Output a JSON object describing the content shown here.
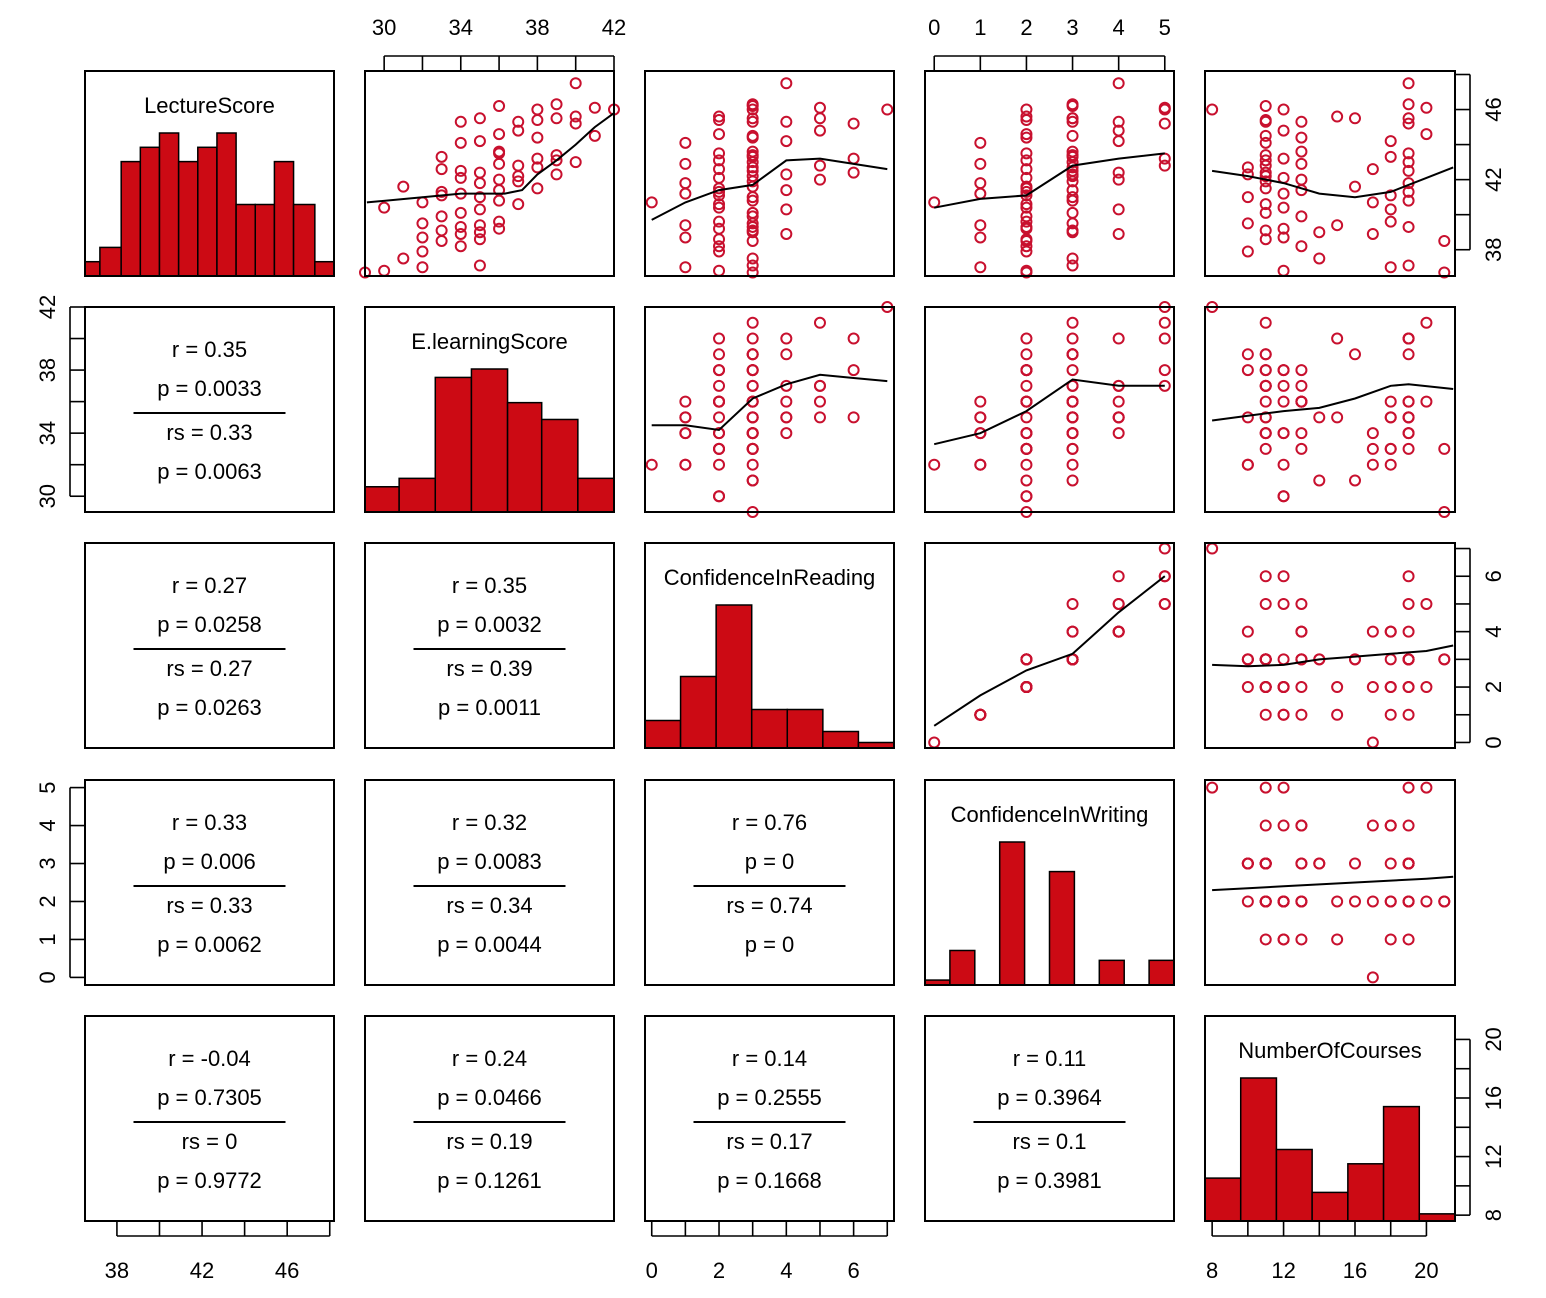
{
  "chart_data": {
    "type": "scatter-matrix",
    "variables": [
      {
        "name": "LectureScore",
        "range": [
          36.5,
          48.2
        ]
      },
      {
        "name": "E.learningScore",
        "range": [
          29.0,
          42.0
        ]
      },
      {
        "name": "ConfidenceInReading",
        "range": [
          -0.2,
          7.2
        ]
      },
      {
        "name": "ConfidenceInWriting",
        "range": [
          -0.2,
          5.2
        ]
      },
      {
        "name": "NumberOfCourses",
        "range": [
          7.6,
          21.6
        ]
      }
    ],
    "axes": {
      "top": [
        {
          "col": 1,
          "ticks": [
            30,
            32,
            34,
            36,
            38,
            40,
            42
          ],
          "labels": [
            "30",
            "34",
            "38",
            "42"
          ]
        },
        {
          "col": 3,
          "ticks": [
            0,
            1,
            2,
            3,
            4,
            5
          ],
          "labels": [
            "0",
            "1",
            "2",
            "3",
            "4",
            "5"
          ]
        }
      ],
      "bottom": [
        {
          "col": 0,
          "ticks": [
            38,
            40,
            42,
            44,
            46,
            48
          ],
          "labels": [
            "38",
            "42",
            "46"
          ]
        },
        {
          "col": 2,
          "ticks": [
            0,
            1,
            2,
            3,
            4,
            5,
            6,
            7
          ],
          "labels": [
            "0",
            "2",
            "4",
            "6"
          ]
        },
        {
          "col": 4,
          "ticks": [
            8,
            10,
            12,
            14,
            16,
            18,
            20
          ],
          "labels": [
            "8",
            "12",
            "16",
            "20"
          ]
        }
      ],
      "left": [
        {
          "row": 1,
          "ticks": [
            30,
            32,
            34,
            36,
            38,
            40,
            42
          ],
          "labels": [
            "30",
            "34",
            "38",
            "42"
          ]
        },
        {
          "row": 3,
          "ticks": [
            0,
            1,
            2,
            3,
            4,
            5
          ],
          "labels": [
            "0",
            "1",
            "2",
            "3",
            "4",
            "5"
          ]
        }
      ],
      "right": [
        {
          "row": 0,
          "ticks": [
            38,
            40,
            42,
            44,
            46,
            48
          ],
          "labels": [
            "38",
            "42",
            "46"
          ]
        },
        {
          "row": 2,
          "ticks": [
            0,
            1,
            2,
            3,
            4,
            5,
            6,
            7
          ],
          "labels": [
            "0",
            "2",
            "4",
            "6"
          ]
        },
        {
          "row": 4,
          "ticks": [
            8,
            10,
            12,
            14,
            16,
            18,
            20
          ],
          "labels": [
            "8",
            "12",
            "16",
            "20"
          ]
        }
      ]
    },
    "histograms": [
      {
        "var": 0,
        "breaks": [
          36.5,
          37.2,
          38.2,
          39.1,
          40,
          40.9,
          41.8,
          42.7,
          43.6,
          44.5,
          45.4,
          46.3,
          47.3,
          48.2
        ],
        "heights": [
          1,
          2,
          8,
          9,
          10,
          8,
          9,
          10,
          5,
          5,
          8,
          5,
          1
        ]
      },
      {
        "var": 1,
        "breaks": [
          29,
          30.7,
          32.5,
          34.3,
          36.1,
          37.8,
          39.6,
          41.4
        ],
        "heights": [
          3,
          4,
          16,
          17,
          13,
          11,
          4
        ]
      },
      {
        "var": 2,
        "breaks": [
          0,
          1,
          2,
          3,
          4,
          5,
          6,
          7
        ],
        "heights": [
          5,
          13,
          26,
          7,
          7,
          3,
          1
        ]
      },
      {
        "var": 3,
        "breaks": [
          0,
          0.5,
          1,
          1.5,
          2,
          2.5,
          3,
          3.5,
          4,
          4.5,
          5
        ],
        "heights": [
          1,
          7,
          0,
          29,
          0,
          23,
          0,
          5,
          0,
          5
        ],
        "drawZero": false
      },
      {
        "var": 4,
        "breaks": [
          8,
          10,
          12,
          14,
          16,
          18,
          20,
          22
        ],
        "heights": [
          6,
          20,
          10,
          4,
          8,
          16,
          1
        ]
      }
    ],
    "data": {
      "LectureScore": [
        47.5,
        46.0,
        46.3,
        46.2,
        46.1,
        46.0,
        45.6,
        45.5,
        45.5,
        45.4,
        45.3,
        45.3,
        45.2,
        44.8,
        44.6,
        44.5,
        44.4,
        44.2,
        43.5,
        43.4,
        43.3,
        43.2,
        43.1,
        43.0,
        42.9,
        42.8,
        42.7,
        42.6,
        42.5,
        42.4,
        42.3,
        42.1,
        42.0,
        41.9,
        41.8,
        41.6,
        41.5,
        41.4,
        41.2,
        41.1,
        41.0,
        40.8,
        40.7,
        40.6,
        40.4,
        40.1,
        39.9,
        39.6,
        39.5,
        39.4,
        39.3,
        39.2,
        39.1,
        39.0,
        38.9,
        38.7,
        38.6,
        38.5,
        38.2,
        37.9,
        37.5,
        37.1,
        37.0,
        36.8,
        36.7,
        44.1,
        43.6,
        40.3,
        41.3,
        42.2
      ],
      "E.learningScore": [
        40,
        42,
        39,
        36,
        41,
        38,
        40,
        39,
        35,
        38,
        37,
        34,
        40,
        37,
        36,
        41,
        38,
        35,
        36,
        39,
        33,
        38,
        39,
        40,
        36,
        37,
        38,
        33,
        34,
        35,
        39,
        34,
        36,
        37,
        35,
        31,
        38,
        36,
        34,
        33,
        35,
        36,
        32,
        37,
        30,
        34,
        33,
        36,
        32,
        35,
        34,
        36,
        33,
        35,
        34,
        32,
        35,
        33,
        34,
        32,
        31,
        35,
        32,
        30,
        29,
        34,
        36,
        35,
        33,
        37
      ],
      "ConfidenceInReading": [
        4,
        7,
        3,
        3,
        5,
        3,
        2,
        3,
        5,
        2,
        4,
        3,
        6,
        5,
        2,
        3,
        3,
        4,
        2,
        3,
        3,
        6,
        2,
        3,
        1,
        5,
        3,
        2,
        3,
        6,
        4,
        2,
        5,
        3,
        1,
        3,
        2,
        4,
        1,
        2,
        3,
        3,
        0,
        2,
        2,
        3,
        3,
        2,
        3,
        1,
        3,
        2,
        3,
        3,
        4,
        1,
        2,
        3,
        2,
        2,
        3,
        3,
        1,
        2,
        3,
        1,
        3,
        4,
        2,
        3
      ],
      "ConfidenceInWriting": [
        4,
        5,
        3,
        3,
        5,
        2,
        2,
        3,
        3,
        2,
        4,
        3,
        5,
        4,
        2,
        3,
        2,
        4,
        2,
        3,
        3,
        5,
        2,
        3,
        1,
        5,
        3,
        2,
        3,
        4,
        3,
        2,
        4,
        3,
        1,
        2,
        2,
        3,
        1,
        2,
        3,
        3,
        0,
        2,
        2,
        3,
        2,
        2,
        3,
        1,
        2,
        2,
        3,
        3,
        4,
        1,
        2,
        2,
        2,
        2,
        3,
        3,
        1,
        2,
        2,
        1,
        3,
        4,
        2,
        3
      ],
      "NumberOfCourses": [
        19,
        8,
        19,
        11,
        20,
        12,
        15,
        16,
        19,
        11,
        13,
        11,
        19,
        12,
        20,
        11,
        13,
        18,
        19,
        11,
        18,
        12,
        11,
        19,
        13,
        11,
        10,
        17,
        19,
        11,
        10,
        12,
        13,
        11,
        19,
        16,
        11,
        13,
        12,
        18,
        10,
        19,
        17,
        11,
        12,
        11,
        13,
        18,
        10,
        15,
        19,
        12,
        11,
        14,
        17,
        12,
        11,
        21,
        13,
        10,
        14,
        19,
        18,
        12,
        21,
        11,
        13,
        18,
        19,
        11
      ]
    },
    "smooth": {
      "0-1": [
        [
          29.1,
          40.7
        ],
        [
          32,
          41.0
        ],
        [
          34,
          41.2
        ],
        [
          36.3,
          41.2
        ],
        [
          37.2,
          41.4
        ],
        [
          38,
          42.3
        ],
        [
          39,
          43.1
        ],
        [
          40,
          44.0
        ],
        [
          41,
          45.0
        ],
        [
          42,
          45.8
        ]
      ],
      "0-2": [
        [
          0,
          39.7
        ],
        [
          1,
          40.7
        ],
        [
          2,
          41.4
        ],
        [
          3,
          41.7
        ],
        [
          4,
          43.1
        ],
        [
          5,
          43.2
        ],
        [
          6,
          42.9
        ],
        [
          7,
          42.6
        ]
      ],
      "0-3": [
        [
          0,
          40.4
        ],
        [
          1,
          40.9
        ],
        [
          2,
          41.1
        ],
        [
          3,
          42.8
        ],
        [
          4,
          43.2
        ],
        [
          5,
          43.5
        ]
      ],
      "0-4": [
        [
          8,
          42.5
        ],
        [
          10,
          42.2
        ],
        [
          12,
          41.8
        ],
        [
          14,
          41.2
        ],
        [
          16,
          41.0
        ],
        [
          18,
          41.3
        ],
        [
          20,
          42.1
        ],
        [
          21.5,
          42.7
        ]
      ],
      "1-2": [
        [
          0,
          34.5
        ],
        [
          1,
          34.5
        ],
        [
          2,
          34.2
        ],
        [
          3,
          36.2
        ],
        [
          4,
          37.1
        ],
        [
          5,
          37.7
        ],
        [
          6,
          37.5
        ],
        [
          7,
          37.3
        ]
      ],
      "1-3": [
        [
          0,
          33.3
        ],
        [
          1,
          34.0
        ],
        [
          2,
          35.4
        ],
        [
          3,
          37.4
        ],
        [
          4,
          37.0
        ],
        [
          5,
          37.0
        ]
      ],
      "1-4": [
        [
          8,
          34.8
        ],
        [
          10,
          35.1
        ],
        [
          12,
          35.4
        ],
        [
          14,
          35.6
        ],
        [
          16,
          36.2
        ],
        [
          18,
          37.0
        ],
        [
          19,
          37.1
        ],
        [
          21.5,
          36.8
        ]
      ],
      "2-3": [
        [
          0,
          0.6
        ],
        [
          1,
          1.7
        ],
        [
          2,
          2.6
        ],
        [
          3,
          3.2
        ],
        [
          4,
          4.7
        ],
        [
          5,
          6.0
        ]
      ],
      "2-4": [
        [
          8,
          2.8
        ],
        [
          10,
          2.75
        ],
        [
          12,
          2.8
        ],
        [
          14,
          3.0
        ],
        [
          16,
          3.1
        ],
        [
          18,
          3.2
        ],
        [
          20,
          3.3
        ],
        [
          21.5,
          3.5
        ]
      ],
      "3-4": [
        [
          8,
          2.3
        ],
        [
          10,
          2.35
        ],
        [
          12,
          2.4
        ],
        [
          14,
          2.45
        ],
        [
          16,
          2.5
        ],
        [
          18,
          2.55
        ],
        [
          20,
          2.6
        ],
        [
          21.5,
          2.65
        ]
      ]
    },
    "stats": [
      {
        "row": 1,
        "col": 0,
        "r": "r = 0.35",
        "p": "p = 0.0033",
        "rs": "rs = 0.33",
        "ps": "p = 0.0063"
      },
      {
        "row": 2,
        "col": 0,
        "r": "r = 0.27",
        "p": "p = 0.0258",
        "rs": "rs = 0.27",
        "ps": "p = 0.0263"
      },
      {
        "row": 2,
        "col": 1,
        "r": "r = 0.35",
        "p": "p = 0.0032",
        "rs": "rs = 0.39",
        "ps": "p = 0.0011"
      },
      {
        "row": 3,
        "col": 0,
        "r": "r = 0.33",
        "p": "p = 0.006",
        "rs": "rs = 0.33",
        "ps": "p = 0.0062"
      },
      {
        "row": 3,
        "col": 1,
        "r": "r = 0.32",
        "p": "p = 0.0083",
        "rs": "rs = 0.34",
        "ps": "p = 0.0044"
      },
      {
        "row": 3,
        "col": 2,
        "r": "r = 0.76",
        "p": "p = 0",
        "rs": "rs = 0.74",
        "ps": "p = 0"
      },
      {
        "row": 4,
        "col": 0,
        "r": "r = -0.04",
        "p": "p = 0.7305",
        "rs": "rs = 0",
        "ps": "p = 0.9772"
      },
      {
        "row": 4,
        "col": 1,
        "r": "r = 0.24",
        "p": "p = 0.0466",
        "rs": "rs = 0.19",
        "ps": "p = 0.1261"
      },
      {
        "row": 4,
        "col": 2,
        "r": "r = 0.14",
        "p": "p = 0.2555",
        "rs": "rs = 0.17",
        "ps": "p = 0.1668"
      },
      {
        "row": 4,
        "col": 3,
        "r": "r = 0.11",
        "p": "p = 0.3964",
        "rs": "rs = 0.1",
        "ps": "p = 0.3981"
      }
    ],
    "colors": {
      "points": "#c8102e",
      "bars": "#cc0a14",
      "lines": "#000000"
    }
  }
}
